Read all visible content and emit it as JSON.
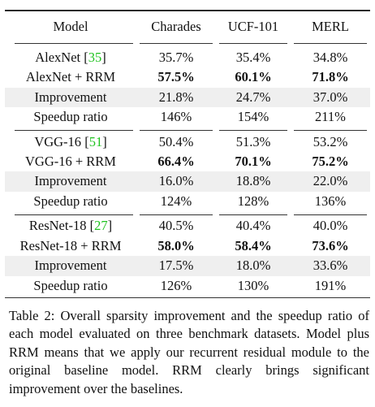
{
  "table": {
    "headers": [
      "Model",
      "Charades",
      "UCF-101",
      "MERL"
    ],
    "groups": [
      {
        "rows": [
          {
            "model": "AlexNet",
            "cite": "35",
            "values": [
              "35.7%",
              "35.4%",
              "34.8%"
            ],
            "bold": false,
            "shaded": false
          },
          {
            "model": "AlexNet + RRM",
            "cite": "",
            "values": [
              "57.5%",
              "60.1%",
              "71.8%"
            ],
            "bold": true,
            "shaded": false
          },
          {
            "model": "Improvement",
            "cite": "",
            "values": [
              "21.8%",
              "24.7%",
              "37.0%"
            ],
            "bold": false,
            "shaded": true
          },
          {
            "model": "Speedup ratio",
            "cite": "",
            "values": [
              "146%",
              "154%",
              "211%"
            ],
            "bold": false,
            "shaded": false
          }
        ]
      },
      {
        "rows": [
          {
            "model": "VGG-16",
            "cite": "51",
            "values": [
              "50.4%",
              "51.3%",
              "53.2%"
            ],
            "bold": false,
            "shaded": false
          },
          {
            "model": "VGG-16 + RRM",
            "cite": "",
            "values": [
              "66.4%",
              "70.1%",
              "75.2%"
            ],
            "bold": true,
            "shaded": false
          },
          {
            "model": "Improvement",
            "cite": "",
            "values": [
              "16.0%",
              "18.8%",
              "22.0%"
            ],
            "bold": false,
            "shaded": true
          },
          {
            "model": "Speedup ratio",
            "cite": "",
            "values": [
              "124%",
              "128%",
              "136%"
            ],
            "bold": false,
            "shaded": false
          }
        ]
      },
      {
        "rows": [
          {
            "model": "ResNet-18",
            "cite": "27",
            "values": [
              "40.5%",
              "40.4%",
              "40.0%"
            ],
            "bold": false,
            "shaded": false
          },
          {
            "model": "ResNet-18 + RRM",
            "cite": "",
            "values": [
              "58.0%",
              "58.4%",
              "73.6%"
            ],
            "bold": true,
            "shaded": false
          },
          {
            "model": "Improvement",
            "cite": "",
            "values": [
              "17.5%",
              "18.0%",
              "33.6%"
            ],
            "bold": false,
            "shaded": true
          },
          {
            "model": "Speedup ratio",
            "cite": "",
            "values": [
              "126%",
              "130%",
              "191%"
            ],
            "bold": false,
            "shaded": false
          }
        ]
      }
    ]
  },
  "caption": "Table 2: Overall sparsity improvement and the speedup ratio of each model evaluated on three benchmark datasets. Model plus RRM means that we apply our recurrent residual module to the original baseline model. RRM clearly brings significant improvement over the baselines.",
  "colors": {
    "citation": "#1ec21e",
    "shaded_row": "#efefef"
  }
}
